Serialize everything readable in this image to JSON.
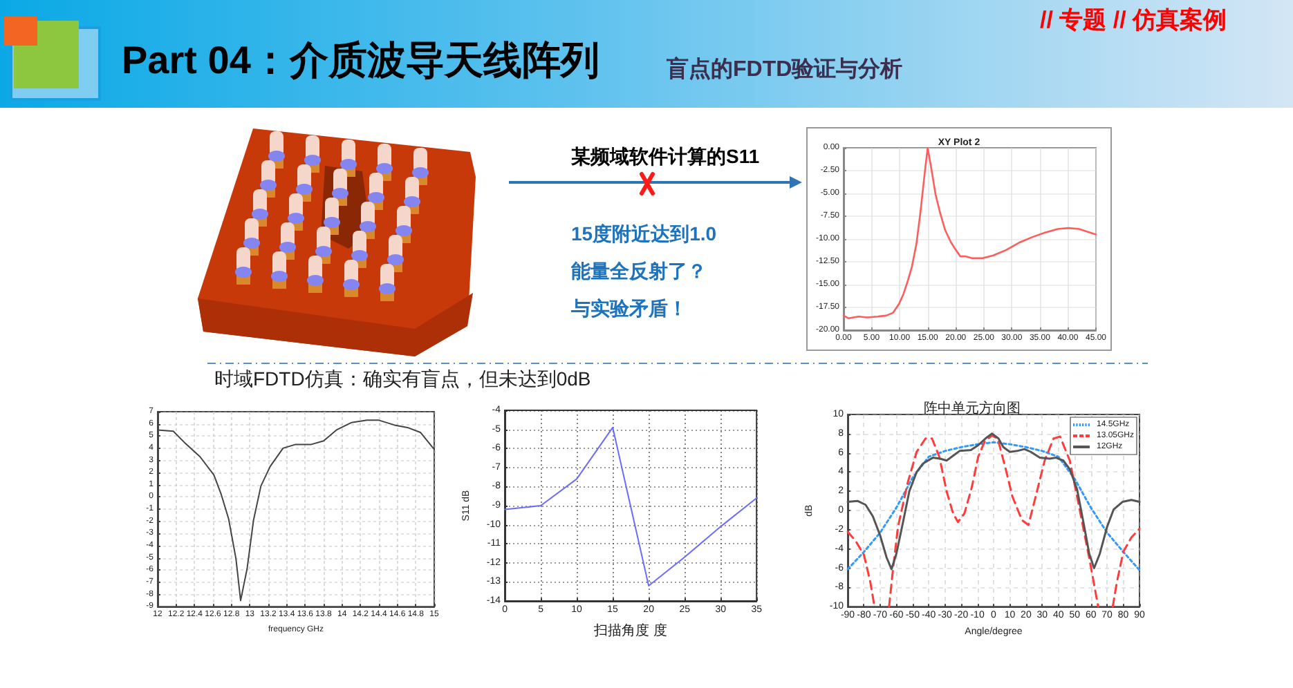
{
  "chart_data": [
    {
      "type": "line",
      "title": "XY Plot 2",
      "x": [
        0,
        0.9,
        2.7,
        4.2,
        6.1,
        7.6,
        8.8,
        9.9,
        10.7,
        11.5,
        12.2,
        13.0,
        13.7,
        14.5,
        15.0,
        15.6,
        16.4,
        17.2,
        18.1,
        19.1,
        19.8,
        20.8,
        21.7,
        22.9,
        24.8,
        26.7,
        29.0,
        31.3,
        33.6,
        35.9,
        38.2,
        40.1,
        42.0,
        43.5,
        45
      ],
      "series": [
        {
          "color": "#ff5c5c",
          "values": [
            -18.4,
            -18.7,
            -18.5,
            -18.6,
            -18.5,
            -18.4,
            -18.1,
            -17.1,
            -16.0,
            -14.5,
            -13.0,
            -10.5,
            -7.1,
            -2.6,
            0,
            -2.1,
            -5.1,
            -7.1,
            -9.0,
            -10.3,
            -11.0,
            -11.9,
            -11.9,
            -12.1,
            -12.1,
            -11.8,
            -11.2,
            -10.4,
            -9.8,
            -9.3,
            -8.9,
            -8.8,
            -8.9,
            -9.2,
            -9.5
          ]
        }
      ],
      "xlim": [
        0,
        45
      ],
      "xticks": [
        {
          "value": 0,
          "label": "0.00"
        },
        {
          "value": 5,
          "label": "5.00"
        },
        {
          "value": 10,
          "label": "10.00"
        },
        {
          "value": 15,
          "label": "15.00"
        },
        {
          "value": 20,
          "label": "20.00"
        },
        {
          "value": 25,
          "label": "25.00"
        },
        {
          "value": 30,
          "label": "30.00"
        },
        {
          "value": 35,
          "label": "35.00"
        },
        {
          "value": 40,
          "label": "40.00"
        },
        {
          "value": 45,
          "label": "45.00"
        }
      ],
      "ylim": [
        -20,
        0
      ],
      "yticks": [
        {
          "value": -20,
          "label": "-20.00"
        },
        {
          "value": -17.5,
          "label": "-17.50"
        },
        {
          "value": -15,
          "label": "-15.00"
        },
        {
          "value": -12.5,
          "label": "-12.50"
        },
        {
          "value": -10,
          "label": "-10.00"
        },
        {
          "value": -7.5,
          "label": "-7.50"
        },
        {
          "value": -5,
          "label": "-5.00"
        },
        {
          "value": -2.5,
          "label": "-2.50"
        },
        {
          "value": 0,
          "label": "0.00"
        }
      ],
      "grid": true,
      "annotations": [
        "Part 04：介质波导天线阵列",
        "盲点的FDTD验证与分析",
        "// 专题 // 仿真案例",
        "某频域软件计算的S11",
        "15度附近达到1.0",
        "能量全反射了？",
        "与实验矛盾！"
      ]
    },
    {
      "type": "line",
      "xlabel": "frequency GHz",
      "x": [
        12.0,
        12.17,
        12.3,
        12.46,
        12.61,
        12.69,
        12.77,
        12.85,
        12.9,
        12.97,
        13.04,
        13.12,
        13.22,
        13.36,
        13.49,
        13.66,
        13.8,
        13.94,
        14.1,
        14.27,
        14.4,
        14.57,
        14.71,
        14.85,
        15.0
      ],
      "series": [
        {
          "color": "#444444",
          "values": [
            5.5,
            5.4,
            4.4,
            3.3,
            1.8,
            0.2,
            -1.8,
            -5.1,
            -8.5,
            -5.9,
            -1.9,
            0.9,
            2.5,
            4.0,
            4.3,
            4.3,
            4.6,
            5.5,
            6.1,
            6.3,
            6.3,
            5.9,
            5.7,
            5.3,
            3.9
          ]
        }
      ],
      "xlim": [
        12,
        15
      ],
      "xticks": [
        12,
        12.2,
        12.4,
        12.6,
        12.8,
        13,
        13.2,
        13.4,
        13.6,
        13.8,
        14,
        14.2,
        14.4,
        14.6,
        14.8,
        15
      ],
      "ylim": [
        -9,
        7
      ],
      "yticks": [
        -9,
        -8,
        -7,
        -6,
        -5,
        -4,
        -3,
        -2,
        -1,
        0,
        1,
        2,
        3,
        4,
        5,
        6,
        7
      ],
      "grid": true,
      "annotations": [
        "时域FDTD仿真：确实有盲点，但未达到0dB"
      ]
    },
    {
      "type": "line",
      "xlabel": "扫描角度 度",
      "ylabel": "S11 dB",
      "x": [
        0,
        5,
        10,
        15,
        20,
        25,
        30,
        35
      ],
      "series": [
        {
          "color": "#6b6bff",
          "values": [
            -9.2,
            -9.0,
            -7.6,
            -4.9,
            -13.2,
            -11.7,
            -10.1,
            -8.6
          ]
        }
      ],
      "xlim": [
        0,
        35
      ],
      "xticks": [
        0,
        5,
        10,
        15,
        20,
        25,
        30,
        35
      ],
      "ylim": [
        -14,
        -4
      ],
      "yticks": [
        -14,
        -13,
        -12,
        -11,
        -10,
        -9,
        -8,
        -7,
        -6,
        -5,
        -4
      ],
      "grid": true
    },
    {
      "type": "line",
      "title": "阵中单元方向图",
      "xlabel": "Angle/degree",
      "ylabel": "dB",
      "series": [
        {
          "name": "14.5GHz",
          "color": "#3399ff",
          "line_style": "dotted",
          "x": [
            -90,
            -80,
            -70,
            -60,
            -50,
            -40,
            -30,
            -20,
            -10,
            0,
            10,
            20,
            30,
            40,
            50,
            60,
            70,
            80,
            90
          ],
          "values": [
            -6.1,
            -4.3,
            -2.3,
            0.3,
            3.4,
            5.6,
            6.2,
            6.6,
            6.9,
            7.1,
            6.9,
            6.6,
            6.2,
            5.6,
            3.3,
            0.3,
            -2.3,
            -4.3,
            -6.2
          ]
        },
        {
          "name": "13.05GHz",
          "color": "#ff3b3b",
          "line_style": "dashed",
          "x": [
            -90,
            -85,
            -80,
            -76,
            -73.5,
            -69,
            -64.5,
            -62,
            -59,
            -53,
            -47.5,
            -42,
            -38,
            -33.5,
            -29,
            -25,
            -22,
            -18,
            -13.5,
            -9.5,
            -5.5,
            -1,
            2.5,
            7.5,
            11.5,
            17.5,
            21.5,
            26,
            31.5,
            37,
            41,
            47,
            52.5,
            59.5,
            64.5,
            69,
            73.5,
            76,
            80,
            85,
            90
          ],
          "values": [
            -2.2,
            -3.2,
            -4.6,
            -7.5,
            -10,
            null,
            -10,
            -6.0,
            -1.7,
            2.9,
            6.1,
            7.5,
            7.5,
            5.6,
            2.0,
            -0.3,
            -1.2,
            -0.3,
            2.4,
            5.6,
            7.2,
            7.8,
            7.5,
            4.3,
            1.5,
            -1.0,
            -1.5,
            1.5,
            5.2,
            7.5,
            7.7,
            5.2,
            0.6,
            -5.4,
            -10,
            null,
            -10,
            -7.5,
            -4.3,
            -2.8,
            -1.9
          ]
        },
        {
          "name": "12GHz",
          "color": "#555555",
          "line_style": "solid",
          "x": [
            -90,
            -84,
            -79,
            -74.5,
            -70,
            -66,
            -63,
            -60,
            -56,
            -52,
            -47.5,
            -43.5,
            -37.5,
            -33,
            -29,
            -25,
            -21,
            -14,
            -9.5,
            -5,
            -1,
            3,
            6,
            10,
            14.5,
            19,
            23,
            28.5,
            34.5,
            38.5,
            43,
            47,
            51.5,
            55.5,
            59,
            62,
            65.5,
            70,
            74,
            79.5,
            85,
            90
          ],
          "values": [
            0.9,
            1.0,
            0.6,
            -0.6,
            -2.6,
            -4.9,
            -6.1,
            -4.5,
            -1.3,
            2.0,
            4.0,
            4.9,
            5.5,
            5.4,
            5.2,
            5.7,
            6.2,
            6.3,
            6.8,
            7.5,
            8.0,
            7.5,
            6.6,
            6.1,
            6.2,
            6.4,
            6.1,
            5.5,
            5.4,
            5.5,
            5.2,
            4.3,
            2.2,
            -1.3,
            -4.5,
            -6.0,
            -4.5,
            -1.7,
            0.1,
            0.9,
            1.1,
            0.9
          ]
        }
      ],
      "xlim": [
        -90,
        90
      ],
      "xticks": [
        -90,
        -80,
        -70,
        -60,
        -50,
        -40,
        -30,
        -20,
        -10,
        0,
        10,
        20,
        30,
        40,
        50,
        60,
        70,
        80,
        90
      ],
      "ylim": [
        -10,
        10
      ],
      "yticks": [
        -10,
        -8,
        -6,
        -4,
        -2,
        0,
        2,
        4,
        6,
        8,
        10
      ],
      "grid": true,
      "legend": "top right"
    }
  ]
}
